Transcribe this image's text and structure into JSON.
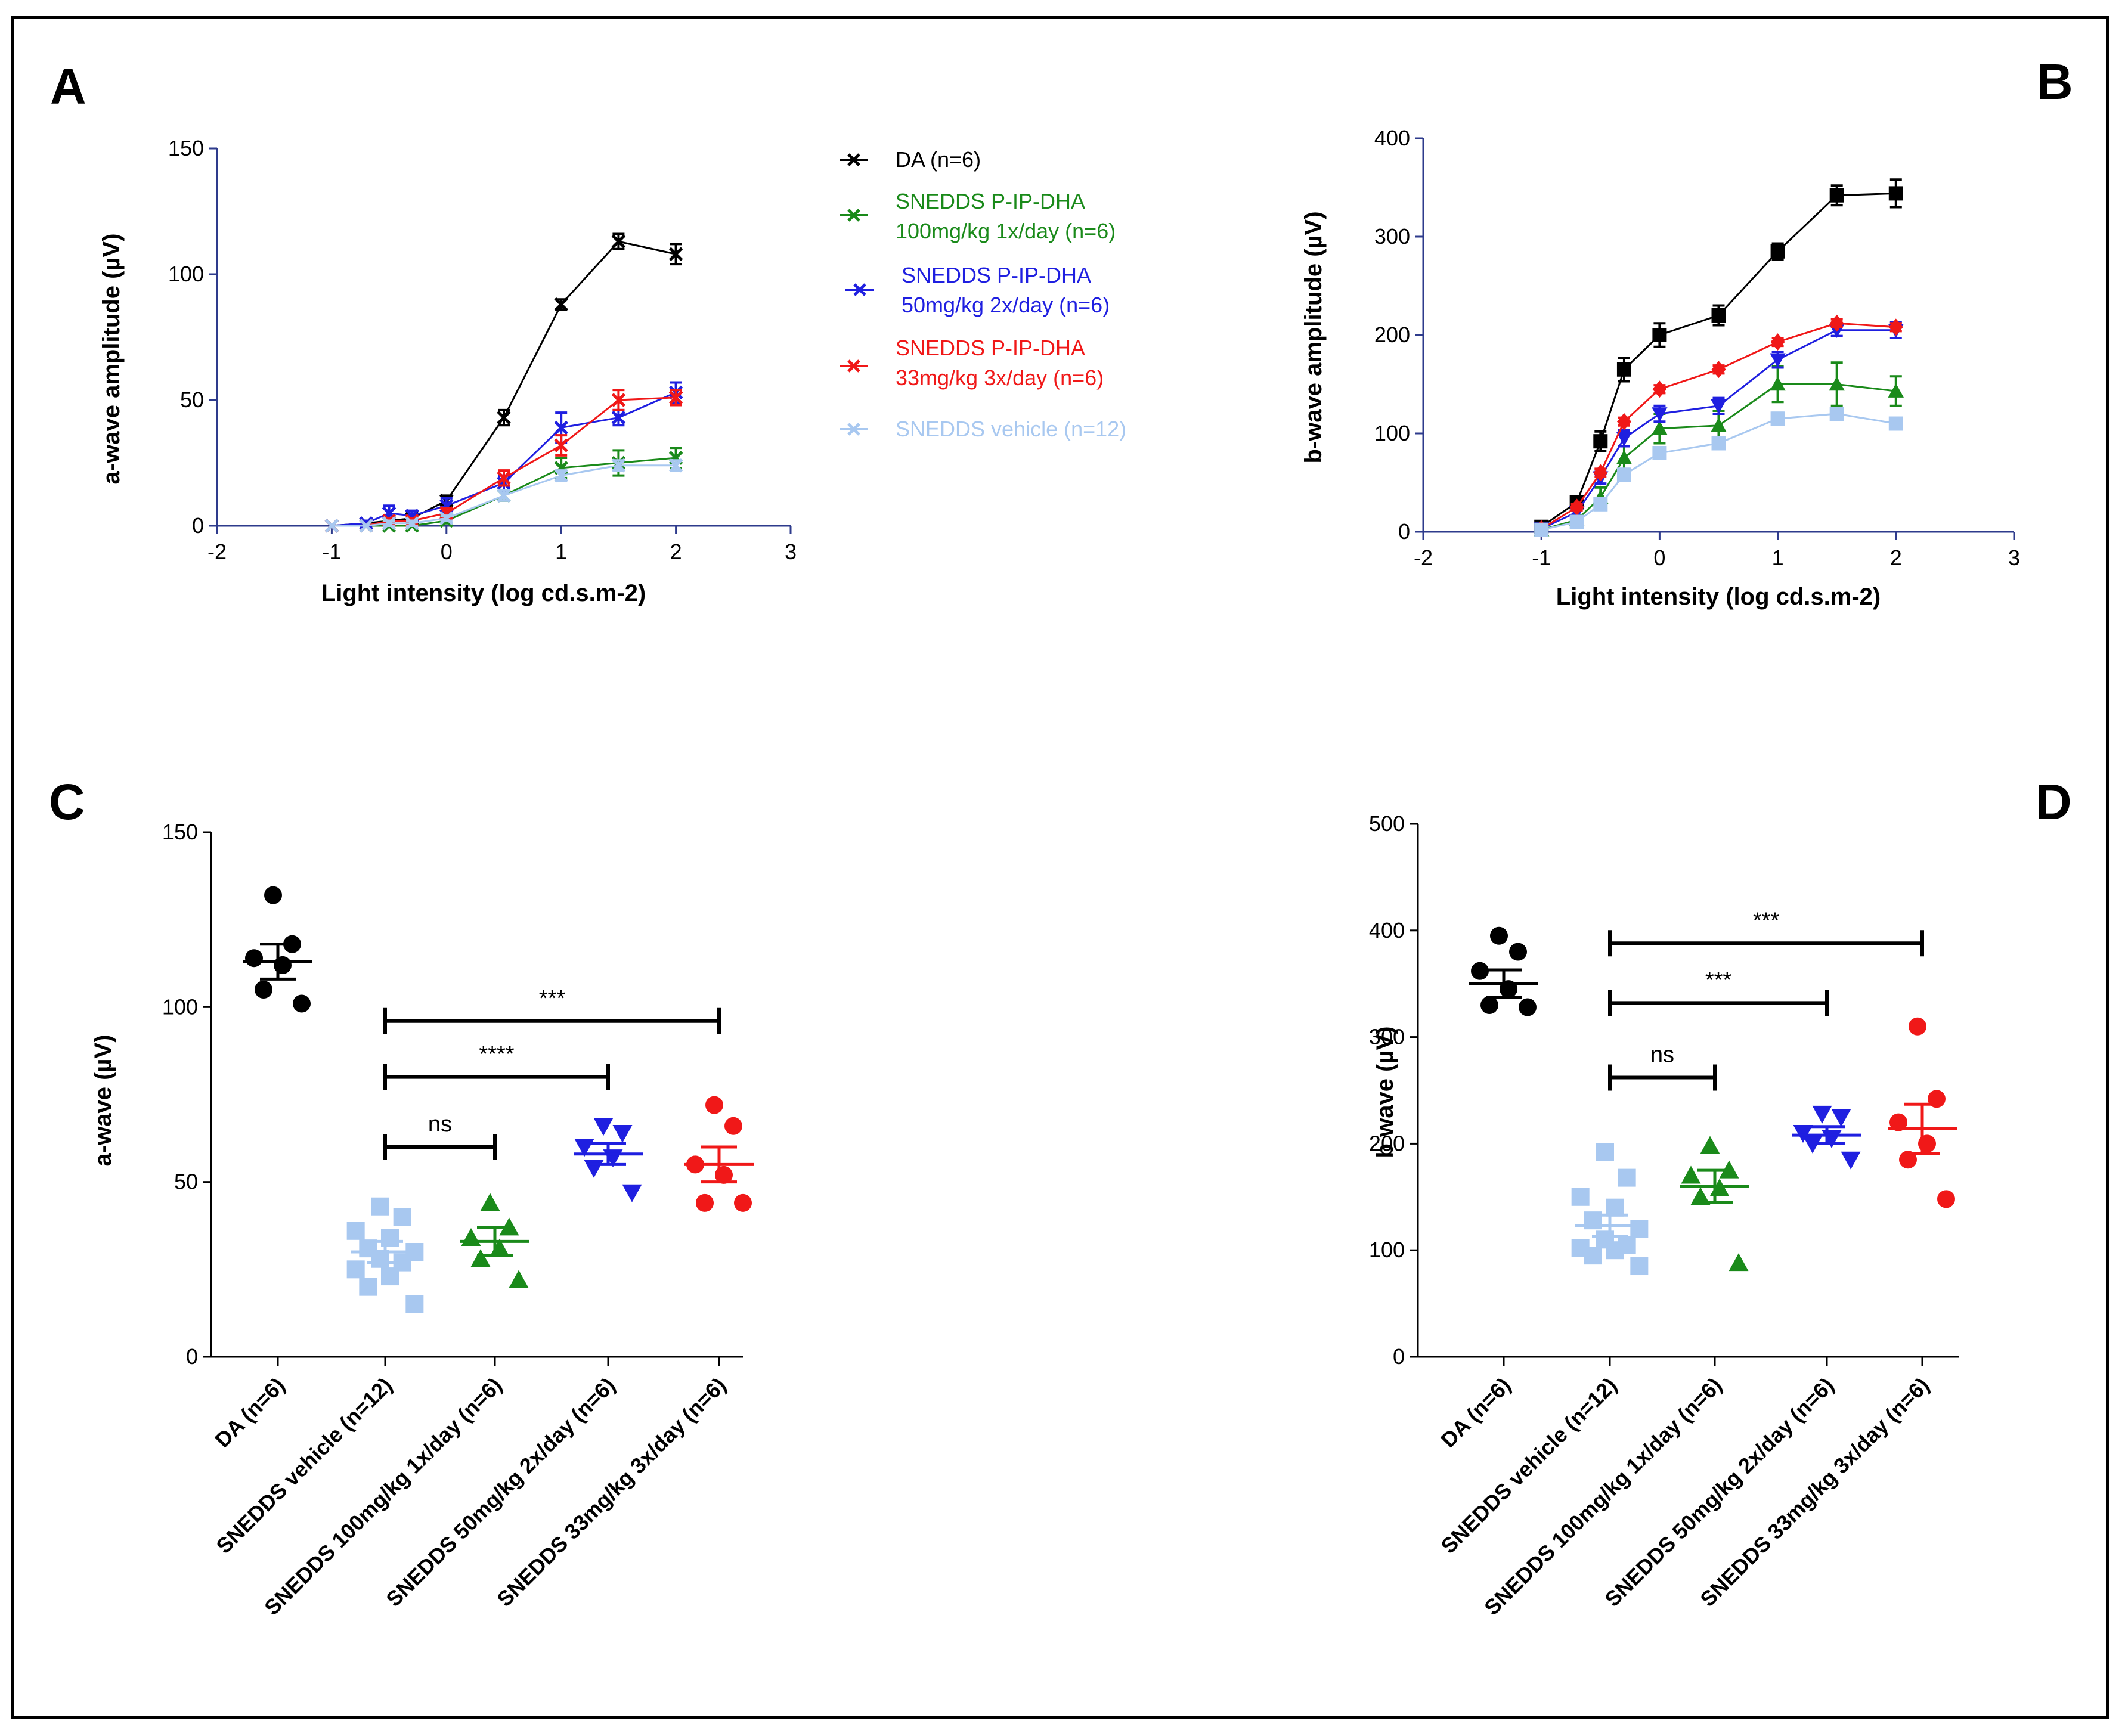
{
  "colors": {
    "axis": "#2e3b8c",
    "DA": "#000000",
    "green": "#1a8a1a",
    "blue": "#1f1fe0",
    "red": "#f01818",
    "lightblue": "#a8c8f0"
  },
  "panels": {
    "A": "A",
    "B": "B",
    "C": "C",
    "D": "D"
  },
  "legend": [
    {
      "key": "DA",
      "line1": "DA (n=6)",
      "line2": "",
      "color": "#000000"
    },
    {
      "key": "green",
      "line1": "SNEDDS P-IP-DHA",
      "line2": "100mg/kg 1x/day (n=6)",
      "color": "#1a8a1a"
    },
    {
      "key": "blue",
      "line1": "SNEDDS P-IP-DHA",
      "line2": "50mg/kg 2x/day (n=6)",
      "color": "#1f1fe0"
    },
    {
      "key": "red",
      "line1": "SNEDDS P-IP-DHA",
      "line2": "33mg/kg 3x/day (n=6)",
      "color": "#f01818"
    },
    {
      "key": "lightblue",
      "line1": "SNEDDS vehicle (n=12)",
      "line2": "",
      "color": "#a8c8f0"
    }
  ],
  "chart_data": [
    {
      "id": "A",
      "type": "line",
      "xlabel": "Light intensity (log cd.s.m-2)",
      "ylabel": "a-wave amplitude (µV)",
      "xlim": [
        -2,
        3
      ],
      "ylim": [
        0,
        150
      ],
      "xticks": [
        -2,
        -1,
        0,
        1,
        2,
        3
      ],
      "yticks": [
        0,
        50,
        100,
        150
      ],
      "x": [
        -1,
        -0.7,
        -0.5,
        -0.3,
        0,
        0.5,
        1,
        1.5,
        2
      ],
      "series": [
        {
          "name": "DA (n=6)",
          "key": "DA",
          "marker": "x",
          "values": [
            0,
            1,
            2,
            3,
            10,
            43,
            88,
            113,
            108
          ],
          "errors": [
            0,
            1,
            1,
            1,
            2,
            3,
            2,
            3,
            4
          ]
        },
        {
          "name": "SNEDDS P-IP-DHA 100mg/kg 1x/day (n=6)",
          "key": "green",
          "marker": "x",
          "values": [
            0,
            0,
            0,
            0,
            2,
            12,
            23,
            25,
            27
          ],
          "errors": [
            0,
            0,
            0,
            0,
            1,
            2,
            4,
            5,
            4
          ]
        },
        {
          "name": "SNEDDS P-IP-DHA 50mg/kg 2x/day (n=6)",
          "key": "blue",
          "marker": "x",
          "values": [
            0,
            1,
            5,
            4,
            8,
            17,
            39,
            43,
            53
          ],
          "errors": [
            0,
            1,
            3,
            2,
            3,
            3,
            6,
            3,
            4
          ]
        },
        {
          "name": "SNEDDS P-IP-DHA 33mg/kg 3x/day (n=6)",
          "key": "red",
          "marker": "x",
          "values": [
            0,
            0,
            2,
            2,
            5,
            19,
            32,
            50,
            51
          ],
          "errors": [
            0,
            0,
            1,
            1,
            2,
            3,
            4,
            4,
            3
          ]
        },
        {
          "name": "SNEDDS vehicle (n=12)",
          "key": "lightblue",
          "marker": "x",
          "values": [
            0,
            0,
            1,
            1,
            3,
            12,
            20,
            24,
            24
          ],
          "errors": [
            0,
            0,
            1,
            1,
            1,
            2,
            2,
            2,
            2
          ]
        }
      ]
    },
    {
      "id": "B",
      "type": "line",
      "xlabel": "Light intensity (log cd.s.m-2)",
      "ylabel": "b-wave amplitude (µV)",
      "xlim": [
        -2,
        3
      ],
      "ylim": [
        0,
        400
      ],
      "xticks": [
        -2,
        -1,
        0,
        1,
        2,
        3
      ],
      "yticks": [
        0,
        100,
        200,
        300,
        400
      ],
      "x": [
        -1,
        -0.7,
        -0.5,
        -0.3,
        0,
        0.5,
        1,
        1.5,
        2
      ],
      "series": [
        {
          "name": "DA (n=6)",
          "key": "DA",
          "marker": "square",
          "values": [
            5,
            30,
            92,
            165,
            200,
            220,
            285,
            342,
            344
          ],
          "errors": [
            3,
            6,
            10,
            12,
            12,
            10,
            8,
            10,
            14
          ]
        },
        {
          "name": "SNEDDS P-IP-DHA 100mg/kg 1x/day (n=6)",
          "key": "green",
          "marker": "triangle-up",
          "values": [
            2,
            12,
            35,
            75,
            105,
            108,
            150,
            150,
            143
          ],
          "errors": [
            2,
            5,
            10,
            12,
            15,
            15,
            18,
            22,
            15
          ]
        },
        {
          "name": "SNEDDS P-IP-DHA 50mg/kg 2x/day (n=6)",
          "key": "blue",
          "marker": "triangle-down",
          "values": [
            3,
            20,
            55,
            95,
            120,
            128,
            175,
            205,
            205
          ],
          "errors": [
            2,
            4,
            6,
            8,
            8,
            8,
            8,
            6,
            8
          ]
        },
        {
          "name": "SNEDDS P-IP-DHA 33mg/kg 3x/day (n=6)",
          "key": "red",
          "marker": "diamond",
          "values": [
            3,
            25,
            60,
            112,
            145,
            165,
            193,
            212,
            208
          ],
          "errors": [
            2,
            3,
            4,
            4,
            4,
            4,
            4,
            4,
            4
          ]
        },
        {
          "name": "SNEDDS vehicle (n=12)",
          "key": "lightblue",
          "marker": "square",
          "values": [
            2,
            10,
            28,
            58,
            80,
            90,
            115,
            120,
            110
          ],
          "errors": [
            1,
            3,
            5,
            6,
            6,
            6,
            6,
            6,
            6
          ]
        }
      ]
    },
    {
      "id": "C",
      "type": "scatter",
      "ylabel": "a-wave (µV)",
      "ylim": [
        0,
        150
      ],
      "yticks": [
        0,
        50,
        100,
        150
      ],
      "groups": [
        {
          "label": "DA (n=6)",
          "key": "DA",
          "marker": "circle",
          "mean": 113,
          "sem": 5,
          "points": [
            132,
            118,
            114,
            112,
            105,
            101
          ]
        },
        {
          "label": "SNEDDS vehicle (n=12)",
          "key": "lightblue",
          "marker": "square",
          "mean": 30,
          "sem": 3,
          "points": [
            43,
            40,
            36,
            34,
            31,
            30,
            28,
            27,
            25,
            23,
            20,
            15
          ]
        },
        {
          "label": "SNEDDS 100mg/kg 1x/day (n=6)",
          "key": "green",
          "marker": "triangle-up",
          "mean": 33,
          "sem": 4,
          "points": [
            44,
            37,
            34,
            31,
            28,
            22
          ]
        },
        {
          "label": "SNEDDS 50mg/kg 2x/day (n=6)",
          "key": "blue",
          "marker": "triangle-down",
          "mean": 58,
          "sem": 3,
          "points": [
            66,
            64,
            60,
            57,
            54,
            47
          ]
        },
        {
          "label": "SNEDDS 33mg/kg 3x/day (n=6)",
          "key": "red",
          "marker": "circle",
          "mean": 55,
          "sem": 5,
          "points": [
            72,
            66,
            55,
            52,
            44,
            44
          ]
        }
      ],
      "brackets": [
        {
          "from": 1,
          "to": 2,
          "level": 60,
          "text": "ns"
        },
        {
          "from": 1,
          "to": 3,
          "level": 80,
          "text": "****"
        },
        {
          "from": 1,
          "to": 4,
          "level": 96,
          "text": "***"
        }
      ]
    },
    {
      "id": "D",
      "type": "scatter",
      "ylabel": "b wave (µV)",
      "ylim": [
        0,
        500
      ],
      "yticks": [
        0,
        100,
        200,
        300,
        400,
        500
      ],
      "groups": [
        {
          "label": "DA (n=6)",
          "key": "DA",
          "marker": "circle",
          "mean": 350,
          "sem": 13,
          "points": [
            395,
            380,
            362,
            345,
            330,
            328
          ]
        },
        {
          "label": "SNEDDS vehicle (n=12)",
          "key": "lightblue",
          "marker": "square",
          "mean": 123,
          "sem": 10,
          "points": [
            192,
            168,
            150,
            140,
            128,
            120,
            110,
            105,
            102,
            100,
            95,
            85
          ]
        },
        {
          "label": "SNEDDS 100mg/kg 1x/day (n=6)",
          "key": "green",
          "marker": "triangle-up",
          "mean": 160,
          "sem": 15,
          "points": [
            198,
            175,
            170,
            158,
            150,
            88
          ]
        },
        {
          "label": "SNEDDS 50mg/kg 2x/day (n=6)",
          "key": "blue",
          "marker": "triangle-down",
          "mean": 208,
          "sem": 8,
          "points": [
            228,
            225,
            210,
            205,
            200,
            185
          ]
        },
        {
          "label": "SNEDDS 33mg/kg 3x/day (n=6)",
          "key": "red",
          "marker": "circle",
          "mean": 214,
          "sem": 23,
          "points": [
            310,
            242,
            220,
            200,
            185,
            148
          ]
        }
      ],
      "brackets": [
        {
          "from": 1,
          "to": 2,
          "level": 262,
          "text": "ns"
        },
        {
          "from": 1,
          "to": 3,
          "level": 332,
          "text": "***"
        },
        {
          "from": 1,
          "to": 4,
          "level": 388,
          "text": "***"
        }
      ]
    }
  ]
}
